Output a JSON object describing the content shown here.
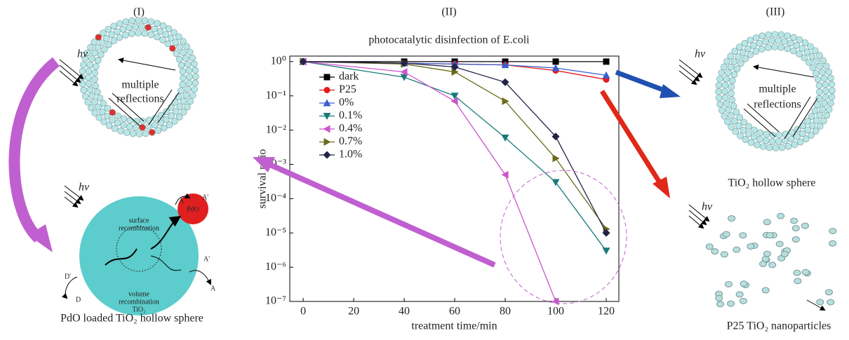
{
  "panels": {
    "left": "(I)",
    "middle": "(II)",
    "right": "(III)"
  },
  "left_diagram": {
    "light": "hv",
    "reflection_line1": "multiple",
    "reflection_line2": "reflections",
    "light2": "hv",
    "surface": "surface",
    "recombination1": "recombination",
    "pdo": "PdO",
    "volume": "volume",
    "recombination2": "recombination",
    "tio2": "TiO₂",
    "a_top": "A",
    "a_prime_top": "A'",
    "d_prime": "D'",
    "d": "D",
    "a_prime": "A'",
    "a": "A",
    "caption": "PdO loaded TiO₂ hollow sphere"
  },
  "right_diagram": {
    "light": "hv",
    "reflection_line1": "multiple",
    "reflection_line2": "reflections",
    "caption": "TiO₂ hollow sphere",
    "light2": "hv",
    "caption2": "P25 TiO₂ nanoparticles"
  },
  "chart_data": {
    "type": "line",
    "title": "photocatalytic disinfection of E.coli",
    "x_label": "treatment time/min",
    "y_label": "survival ratio",
    "log_y": true,
    "x": [
      0,
      40,
      60,
      80,
      100,
      120
    ],
    "series": [
      {
        "name": "dark",
        "color": "#000000",
        "marker": "square",
        "values": [
          1,
          1,
          1,
          1,
          1,
          1
        ]
      },
      {
        "name": "P25",
        "color": "#e41a1c",
        "marker": "circle",
        "values": [
          1,
          0.9,
          0.85,
          0.8,
          0.55,
          0.3
        ]
      },
      {
        "name": "0%",
        "color": "#3a5fcd",
        "marker": "triangle-up",
        "values": [
          1,
          0.9,
          0.85,
          0.8,
          0.65,
          0.4
        ]
      },
      {
        "name": "0.1%",
        "color": "#1a7a7a",
        "marker": "triangle-down",
        "values": [
          1,
          0.35,
          0.1,
          0.006,
          0.0003,
          3e-06
        ]
      },
      {
        "name": "0.4%",
        "color": "#cc55cc",
        "marker": "triangle-left",
        "values": [
          1,
          0.5,
          0.07,
          0.0005,
          1e-07,
          null
        ]
      },
      {
        "name": "0.7%",
        "color": "#6b6b1a",
        "marker": "triangle-right",
        "values": [
          1,
          0.85,
          0.5,
          0.07,
          0.0015,
          1.3e-05
        ]
      },
      {
        "name": "1.0%",
        "color": "#22224a",
        "marker": "diamond",
        "values": [
          1,
          0.9,
          0.7,
          0.25,
          0.0065,
          1e-05
        ]
      }
    ],
    "xlim": [
      -5.3,
      125
    ],
    "ylim": [
      1e-07,
      1.45
    ],
    "xticks": [
      0,
      20,
      40,
      60,
      80,
      100,
      120
    ],
    "yticks": [
      {
        "value": 1,
        "label": "10⁰"
      },
      {
        "value": 0.1,
        "label": "10⁻¹"
      },
      {
        "value": 0.01,
        "label": "10⁻²"
      },
      {
        "value": 0.001,
        "label": "10⁻³"
      },
      {
        "value": 0.0001,
        "label": "10⁻⁴"
      },
      {
        "value": 1e-05,
        "label": "10⁻⁵"
      },
      {
        "value": 1e-06,
        "label": "10⁻⁶"
      },
      {
        "value": 1e-07,
        "label": "10⁻⁷"
      }
    ],
    "legend": "upper-left"
  }
}
